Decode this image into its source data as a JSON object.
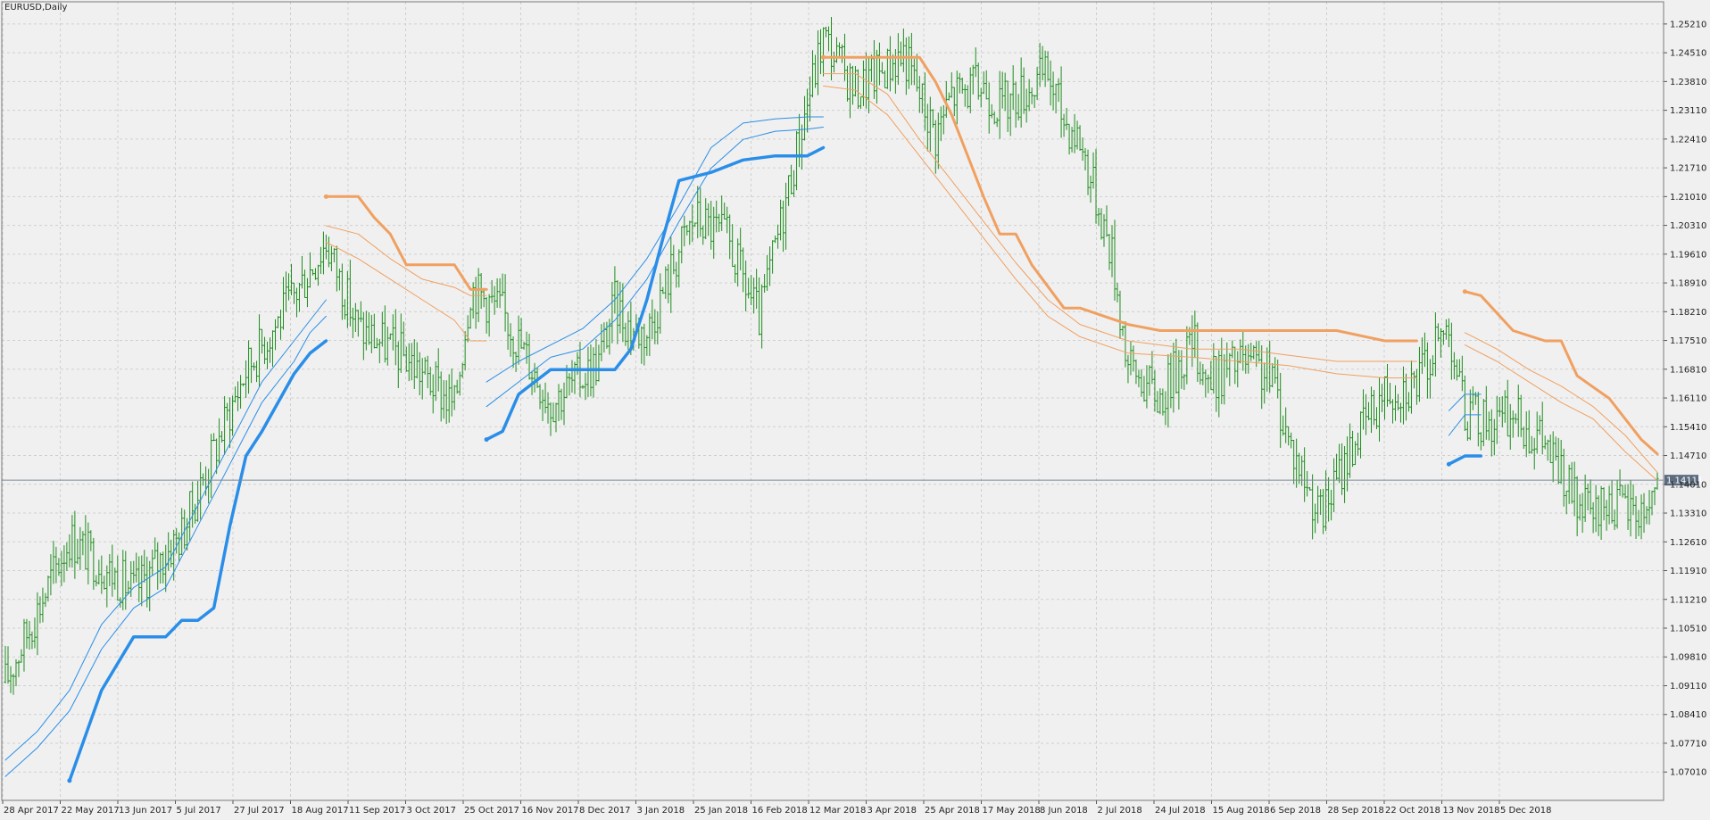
{
  "header": {
    "symbol_label": "EURUSD,Daily"
  },
  "colors": {
    "background": "#f0f0f0",
    "grid": "#cfcfcf",
    "bars": "#1e8c1e",
    "upper_line": "#f0a060",
    "lower_line": "#2a8ee8",
    "price_line": "#7a8a9a",
    "price_badge": "#5c6c80"
  },
  "chart_data": {
    "type": "line",
    "title": "EURUSD,Daily",
    "grid": true,
    "ylim": [
      1.0632,
      1.2575
    ],
    "y_ticks": [
      "1.25210",
      "1.24510",
      "1.23810",
      "1.23110",
      "1.22410",
      "1.21710",
      "1.21010",
      "1.20310",
      "1.19610",
      "1.18910",
      "1.18210",
      "1.17510",
      "1.16810",
      "1.16110",
      "1.15410",
      "1.14710",
      "1.14010",
      "1.13310",
      "1.12610",
      "1.11910",
      "1.11210",
      "1.10510",
      "1.09810",
      "1.09110",
      "1.08410",
      "1.07710",
      "1.07010"
    ],
    "x_ticks": [
      "28 Apr 2017",
      "22 May 2017",
      "13 Jun 2017",
      "5 Jul 2017",
      "27 Jul 2017",
      "18 Aug 2017",
      "11 Sep 2017",
      "3 Oct 2017",
      "25 Oct 2017",
      "16 Nov 2017",
      "8 Dec 2017",
      "3 Jan 2018",
      "25 Jan 2018",
      "16 Feb 2018",
      "12 Mar 2018",
      "3 Apr 2018",
      "25 Apr 2018",
      "17 May 2018",
      "8 Jun 2018",
      "2 Jul 2018",
      "24 Jul 2018",
      "15 Aug 2018",
      "6 Sep 2018",
      "28 Sep 2018",
      "22 Oct 2018",
      "13 Nov 2018",
      "5 Dec 2018"
    ],
    "current_price": "1.14111",
    "price_series": {
      "name": "",
      "x_index": [
        0,
        24,
        48,
        66,
        90,
        108,
        120,
        132,
        150,
        168,
        174,
        186,
        204,
        222,
        228,
        234,
        240,
        252,
        258,
        270,
        282,
        300,
        306,
        318,
        336,
        348,
        354,
        366,
        372,
        384,
        390,
        396,
        402,
        414,
        420,
        432,
        444,
        450,
        462,
        474,
        480,
        492,
        504,
        516,
        528,
        540,
        546,
        558,
        564,
        576,
        588,
        594,
        600,
        612,
        618
      ],
      "close": [
        1.092,
        1.127,
        1.114,
        1.128,
        1.168,
        1.186,
        1.199,
        1.178,
        1.171,
        1.159,
        1.188,
        1.182,
        1.16,
        1.17,
        1.184,
        1.178,
        1.177,
        1.197,
        1.205,
        1.2,
        1.18,
        1.233,
        1.249,
        1.236,
        1.245,
        1.225,
        1.235,
        1.237,
        1.232,
        1.237,
        1.24,
        1.229,
        1.224,
        1.196,
        1.169,
        1.161,
        1.175,
        1.165,
        1.17,
        1.166,
        1.151,
        1.132,
        1.15,
        1.163,
        1.165,
        1.179,
        1.157,
        1.155,
        1.157,
        1.15,
        1.135,
        1.132,
        1.136,
        1.133,
        1.14
      ],
      "half_range": 0.008
    },
    "series": [
      {
        "segments": [
          {
            "x": [
              120,
              132,
              138,
              144,
              150,
              168,
              174,
              180
            ],
            "y": [
              1.2101,
              1.2101,
              1.205,
              1.201,
              1.1935,
              1.1935,
              1.1875,
              1.1875
            ]
          },
          {
            "x": [
              306,
              342,
              348,
              354,
              360,
              366,
              372,
              378,
              384,
              396,
              402,
              420,
              432,
              444,
              450,
              498,
              516,
              522,
              528
            ],
            "y": [
              1.244,
              1.244,
              1.238,
              1.23,
              1.22,
              1.21,
              1.201,
              1.201,
              1.1935,
              1.183,
              1.183,
              1.179,
              1.1775,
              1.1775,
              1.1775,
              1.1775,
              1.175,
              1.175,
              1.175
            ]
          },
          {
            "x": [
              546,
              552,
              564,
              576,
              582,
              588,
              600,
              612,
              618
            ],
            "y": [
              1.187,
              1.186,
              1.1775,
              1.175,
              1.175,
              1.1665,
              1.161,
              1.151,
              1.1475
            ]
          }
        ]
      },
      {
        "segments": [
          {
            "x": [
              120,
              132,
              144,
              156,
              168,
              174,
              180
            ],
            "y": [
              1.203,
              1.201,
              1.195,
              1.19,
              1.188,
              1.186,
              1.186
            ]
          },
          {
            "x": [
              306,
              318,
              330,
              342,
              354,
              366,
              378,
              390,
              402,
              420,
              444,
              462,
              480,
              498,
              516,
              528
            ],
            "y": [
              1.24,
              1.24,
              1.235,
              1.224,
              1.214,
              1.204,
              1.194,
              1.185,
              1.179,
              1.175,
              1.173,
              1.173,
              1.1715,
              1.17,
              1.17,
              1.17
            ]
          },
          {
            "x": [
              546,
              558,
              570,
              582,
              594,
              606,
              618
            ],
            "y": [
              1.177,
              1.173,
              1.168,
              1.164,
              1.159,
              1.152,
              1.143
            ]
          }
        ]
      },
      {
        "segments": [
          {
            "x": [
              120,
              132,
              144,
              156,
              168,
              174,
              180
            ],
            "y": [
              1.199,
              1.195,
              1.19,
              1.185,
              1.18,
              1.175,
              1.175
            ]
          },
          {
            "x": [
              306,
              318,
              330,
              342,
              354,
              366,
              378,
              390,
              402,
              420,
              444,
              462,
              480,
              498,
              516,
              528
            ],
            "y": [
              1.237,
              1.236,
              1.23,
              1.22,
              1.21,
              1.2,
              1.19,
              1.181,
              1.176,
              1.172,
              1.171,
              1.17,
              1.169,
              1.167,
              1.166,
              1.166
            ]
          },
          {
            "x": [
              546,
              558,
              570,
              582,
              594,
              606,
              618
            ],
            "y": [
              1.174,
              1.17,
              1.165,
              1.16,
              1.156,
              1.148,
              1.141
            ]
          }
        ]
      },
      {
        "segments": [
          {
            "x": [
              0,
              12,
              24,
              36,
              48,
              60,
              72,
              84,
              96,
              108,
              114,
              120
            ],
            "y": [
              1.073,
              1.08,
              1.09,
              1.106,
              1.115,
              1.12,
              1.135,
              1.15,
              1.165,
              1.175,
              1.18,
              1.185
            ]
          },
          {
            "x": [
              180,
              192,
              204,
              216,
              228,
              240,
              252,
              264,
              276,
              288,
              300,
              306
            ],
            "y": [
              1.165,
              1.17,
              1.174,
              1.178,
              1.185,
              1.195,
              1.208,
              1.222,
              1.228,
              1.229,
              1.2295,
              1.2295
            ]
          },
          {
            "x": [
              540,
              546,
              552
            ],
            "y": [
              1.158,
              1.162,
              1.162
            ]
          }
        ]
      },
      {
        "segments": [
          {
            "x": [
              0,
              12,
              24,
              36,
              48,
              60,
              72,
              84,
              96,
              108,
              114,
              120
            ],
            "y": [
              1.069,
              1.076,
              1.085,
              1.1,
              1.11,
              1.115,
              1.13,
              1.145,
              1.16,
              1.17,
              1.177,
              1.181
            ]
          },
          {
            "x": [
              180,
              192,
              204,
              216,
              228,
              240,
              252,
              264,
              276,
              288,
              300,
              306
            ],
            "y": [
              1.159,
              1.165,
              1.171,
              1.173,
              1.18,
              1.19,
              1.204,
              1.217,
              1.224,
              1.226,
              1.2265,
              1.227
            ]
          },
          {
            "x": [
              540,
              546,
              552
            ],
            "y": [
              1.152,
              1.157,
              1.157
            ]
          }
        ]
      },
      {
        "segments": [
          {
            "x": [
              24,
              36,
              48,
              60,
              66,
              72,
              78,
              84,
              90,
              96,
              102,
              108,
              114,
              120
            ],
            "y": [
              1.068,
              1.09,
              1.103,
              1.103,
              1.107,
              1.107,
              1.11,
              1.13,
              1.147,
              1.153,
              1.16,
              1.167,
              1.172,
              1.175
            ]
          },
          {
            "x": [
              180,
              186,
              192,
              204,
              216,
              228,
              234,
              240,
              246,
              252,
              264,
              276,
              288,
              300,
              306
            ],
            "y": [
              1.151,
              1.153,
              1.162,
              1.168,
              1.168,
              1.168,
              1.173,
              1.185,
              1.2,
              1.214,
              1.216,
              1.219,
              1.22,
              1.22,
              1.222
            ]
          },
          {
            "x": [
              540,
              546,
              552
            ],
            "y": [
              1.145,
              1.147,
              1.147
            ]
          }
        ]
      }
    ]
  }
}
